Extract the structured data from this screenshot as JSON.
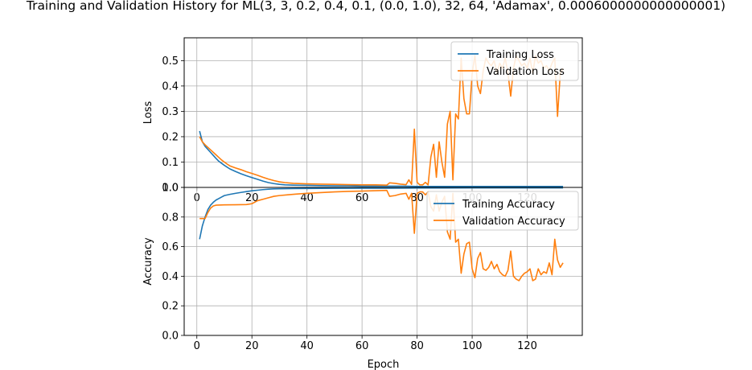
{
  "figure": {
    "title": "Training and Validation History for ML(3, 3, 0.2, 0.4, 0.1, (0.0, 1.0), 32, 64, 'Adamax', 0.0006000000000000001)"
  },
  "colors": {
    "training": "#1f77b4",
    "validation": "#ff7f0e",
    "grid": "#b0b0b0",
    "axes": "#000000"
  },
  "chart_data": [
    {
      "type": "line",
      "ylabel": "Loss",
      "xlim": [
        -4.6,
        140
      ],
      "ylim": [
        0,
        0.59
      ],
      "xticks": [
        0,
        20,
        40,
        60,
        80,
        100,
        120
      ],
      "yticks": [
        0.0,
        0.1,
        0.2,
        0.3,
        0.4,
        0.5
      ],
      "ytick_labels": [
        "0.0",
        "0.1",
        "0.2",
        "0.3",
        "0.4",
        "0.5"
      ],
      "grid": true,
      "legend": "upper right",
      "series": [
        {
          "name": "Training Loss",
          "color": "#1f77b4",
          "points": [
            [
              1,
              0.222
            ],
            [
              2,
              0.18
            ],
            [
              3,
              0.162
            ],
            [
              4,
              0.15
            ],
            [
              5,
              0.138
            ],
            [
              6,
              0.126
            ],
            [
              7,
              0.114
            ],
            [
              8,
              0.103
            ],
            [
              9,
              0.095
            ],
            [
              10,
              0.087
            ],
            [
              11,
              0.08
            ],
            [
              12,
              0.073
            ],
            [
              14,
              0.063
            ],
            [
              16,
              0.054
            ],
            [
              18,
              0.046
            ],
            [
              20,
              0.039
            ],
            [
              22,
              0.032
            ],
            [
              24,
              0.025
            ],
            [
              26,
              0.019
            ],
            [
              28,
              0.015
            ],
            [
              30,
              0.012
            ],
            [
              32,
              0.01
            ],
            [
              35,
              0.009
            ],
            [
              40,
              0.008
            ],
            [
              45,
              0.007
            ],
            [
              50,
              0.006
            ],
            [
              55,
              0.006
            ],
            [
              60,
              0.005
            ],
            [
              65,
              0.005
            ],
            [
              70,
              0.005
            ],
            [
              75,
              0.005
            ],
            [
              80,
              0.004
            ],
            [
              90,
              0.004
            ],
            [
              100,
              0.004
            ],
            [
              110,
              0.004
            ],
            [
              120,
              0.004
            ],
            [
              133,
              0.004
            ]
          ]
        },
        {
          "name": "Validation Loss",
          "color": "#ff7f0e",
          "points": [
            [
              1,
              0.2
            ],
            [
              2,
              0.18
            ],
            [
              3,
              0.168
            ],
            [
              4,
              0.158
            ],
            [
              5,
              0.148
            ],
            [
              6,
              0.138
            ],
            [
              7,
              0.128
            ],
            [
              8,
              0.118
            ],
            [
              9,
              0.108
            ],
            [
              10,
              0.1
            ],
            [
              11,
              0.092
            ],
            [
              12,
              0.085
            ],
            [
              14,
              0.077
            ],
            [
              16,
              0.07
            ],
            [
              18,
              0.062
            ],
            [
              20,
              0.055
            ],
            [
              22,
              0.048
            ],
            [
              24,
              0.04
            ],
            [
              26,
              0.033
            ],
            [
              28,
              0.027
            ],
            [
              30,
              0.022
            ],
            [
              32,
              0.019
            ],
            [
              35,
              0.016
            ],
            [
              40,
              0.014
            ],
            [
              45,
              0.013
            ],
            [
              50,
              0.012
            ],
            [
              55,
              0.011
            ],
            [
              60,
              0.01
            ],
            [
              65,
              0.01
            ],
            [
              69,
              0.009
            ],
            [
              70,
              0.018
            ],
            [
              72,
              0.016
            ],
            [
              74,
              0.013
            ],
            [
              76,
              0.011
            ],
            [
              77,
              0.03
            ],
            [
              78,
              0.012
            ],
            [
              79,
              0.23
            ],
            [
              80,
              0.02
            ],
            [
              81,
              0.01
            ],
            [
              82,
              0.01
            ],
            [
              83,
              0.02
            ],
            [
              84,
              0.01
            ],
            [
              85,
              0.12
            ],
            [
              86,
              0.17
            ],
            [
              87,
              0.04
            ],
            [
              88,
              0.18
            ],
            [
              89,
              0.1
            ],
            [
              90,
              0.04
            ],
            [
              91,
              0.25
            ],
            [
              92,
              0.3
            ],
            [
              93,
              0.03
            ],
            [
              94,
              0.29
            ],
            [
              95,
              0.27
            ],
            [
              96,
              0.51
            ],
            [
              97,
              0.35
            ],
            [
              98,
              0.29
            ],
            [
              99,
              0.29
            ],
            [
              100,
              0.45
            ],
            [
              101,
              0.52
            ],
            [
              102,
              0.4
            ],
            [
              103,
              0.37
            ],
            [
              104,
              0.46
            ],
            [
              105,
              0.51
            ],
            [
              106,
              0.49
            ],
            [
              107,
              0.48
            ],
            [
              108,
              0.5
            ],
            [
              109,
              0.45
            ],
            [
              110,
              0.49
            ],
            [
              111,
              0.47
            ],
            [
              112,
              0.51
            ],
            [
              113,
              0.45
            ],
            [
              114,
              0.36
            ],
            [
              115,
              0.47
            ],
            [
              116,
              0.52
            ],
            [
              117,
              0.5
            ],
            [
              118,
              0.48
            ],
            [
              119,
              0.49
            ],
            [
              120,
              0.47
            ],
            [
              121,
              0.51
            ],
            [
              122,
              0.45
            ],
            [
              123,
              0.52
            ],
            [
              124,
              0.49
            ],
            [
              125,
              0.5
            ],
            [
              126,
              0.47
            ],
            [
              127,
              0.48
            ],
            [
              128,
              0.46
            ],
            [
              129,
              0.49
            ],
            [
              130,
              0.51
            ],
            [
              131,
              0.28
            ],
            [
              132,
              0.45
            ],
            [
              133,
              0.47
            ]
          ]
        }
      ]
    },
    {
      "type": "line",
      "ylabel": "Accuracy",
      "xlabel": "Epoch",
      "xlim": [
        -4.6,
        140
      ],
      "ylim": [
        0,
        1.0
      ],
      "xticks": [
        0,
        20,
        40,
        60,
        80,
        100,
        120
      ],
      "yticks": [
        0.0,
        0.2,
        0.4,
        0.6,
        0.8,
        1.0
      ],
      "ytick_labels": [
        "0.0",
        "0.2",
        "0.4",
        "0.6",
        "0.8",
        "1.0"
      ],
      "grid": true,
      "legend": "upper right",
      "series": [
        {
          "name": "Training Accuracy",
          "color": "#1f77b4",
          "points": [
            [
              1,
              0.65
            ],
            [
              2,
              0.74
            ],
            [
              3,
              0.8
            ],
            [
              4,
              0.85
            ],
            [
              5,
              0.88
            ],
            [
              6,
              0.9
            ],
            [
              7,
              0.915
            ],
            [
              8,
              0.925
            ],
            [
              9,
              0.935
            ],
            [
              10,
              0.945
            ],
            [
              12,
              0.953
            ],
            [
              14,
              0.96
            ],
            [
              16,
              0.966
            ],
            [
              18,
              0.972
            ],
            [
              20,
              0.977
            ],
            [
              22,
              0.981
            ],
            [
              24,
              0.985
            ],
            [
              26,
              0.988
            ],
            [
              28,
              0.99
            ],
            [
              30,
              0.991
            ],
            [
              35,
              0.992
            ],
            [
              40,
              0.993
            ],
            [
              50,
              0.994
            ],
            [
              60,
              0.995
            ],
            [
              70,
              0.995
            ],
            [
              80,
              0.996
            ],
            [
              90,
              0.996
            ],
            [
              100,
              0.997
            ],
            [
              110,
              0.997
            ],
            [
              120,
              0.997
            ],
            [
              133,
              0.997
            ]
          ]
        },
        {
          "name": "Validation Accuracy",
          "color": "#ff7f0e",
          "points": [
            [
              1,
              0.79
            ],
            [
              2,
              0.79
            ],
            [
              3,
              0.79
            ],
            [
              4,
              0.83
            ],
            [
              5,
              0.86
            ],
            [
              6,
              0.875
            ],
            [
              7,
              0.88
            ],
            [
              8,
              0.881
            ],
            [
              10,
              0.882
            ],
            [
              14,
              0.883
            ],
            [
              18,
              0.884
            ],
            [
              20,
              0.89
            ],
            [
              22,
              0.91
            ],
            [
              24,
              0.92
            ],
            [
              26,
              0.93
            ],
            [
              28,
              0.94
            ],
            [
              30,
              0.945
            ],
            [
              33,
              0.95
            ],
            [
              36,
              0.955
            ],
            [
              40,
              0.96
            ],
            [
              45,
              0.965
            ],
            [
              50,
              0.97
            ],
            [
              55,
              0.973
            ],
            [
              60,
              0.975
            ],
            [
              65,
              0.978
            ],
            [
              69,
              0.98
            ],
            [
              70,
              0.94
            ],
            [
              72,
              0.945
            ],
            [
              74,
              0.955
            ],
            [
              76,
              0.96
            ],
            [
              77,
              0.92
            ],
            [
              78,
              0.96
            ],
            [
              79,
              0.69
            ],
            [
              80,
              0.96
            ],
            [
              81,
              0.97
            ],
            [
              82,
              0.97
            ],
            [
              83,
              0.95
            ],
            [
              84,
              0.97
            ],
            [
              85,
              0.87
            ],
            [
              86,
              0.84
            ],
            [
              87,
              0.95
            ],
            [
              88,
              0.84
            ],
            [
              89,
              0.9
            ],
            [
              90,
              0.94
            ],
            [
              91,
              0.7
            ],
            [
              92,
              0.65
            ],
            [
              93,
              0.96
            ],
            [
              94,
              0.63
            ],
            [
              95,
              0.65
            ],
            [
              96,
              0.42
            ],
            [
              97,
              0.55
            ],
            [
              98,
              0.62
            ],
            [
              99,
              0.63
            ],
            [
              100,
              0.45
            ],
            [
              101,
              0.39
            ],
            [
              102,
              0.52
            ],
            [
              103,
              0.56
            ],
            [
              104,
              0.45
            ],
            [
              105,
              0.44
            ],
            [
              106,
              0.46
            ],
            [
              107,
              0.5
            ],
            [
              108,
              0.45
            ],
            [
              109,
              0.48
            ],
            [
              110,
              0.43
            ],
            [
              111,
              0.41
            ],
            [
              112,
              0.4
            ],
            [
              113,
              0.44
            ],
            [
              114,
              0.57
            ],
            [
              115,
              0.4
            ],
            [
              116,
              0.38
            ],
            [
              117,
              0.37
            ],
            [
              118,
              0.4
            ],
            [
              119,
              0.42
            ],
            [
              120,
              0.43
            ],
            [
              121,
              0.45
            ],
            [
              122,
              0.37
            ],
            [
              123,
              0.38
            ],
            [
              124,
              0.45
            ],
            [
              125,
              0.41
            ],
            [
              126,
              0.43
            ],
            [
              127,
              0.42
            ],
            [
              128,
              0.49
            ],
            [
              129,
              0.41
            ],
            [
              130,
              0.65
            ],
            [
              131,
              0.51
            ],
            [
              132,
              0.46
            ],
            [
              133,
              0.49
            ]
          ]
        }
      ]
    }
  ]
}
